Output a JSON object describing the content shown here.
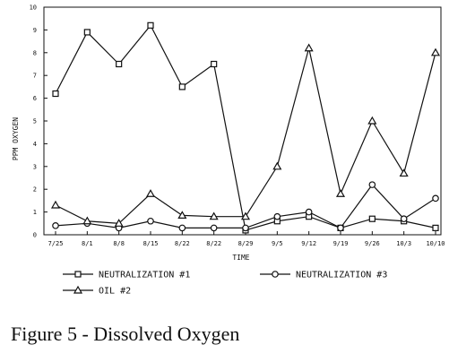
{
  "caption": "Figure 5 - Dissolved Oxygen",
  "chart_data": {
    "type": "line",
    "xlabel": "TIME",
    "ylabel": "PPM OXYGEN",
    "ylim": [
      0,
      10
    ],
    "yticks": [
      0,
      1,
      2,
      3,
      4,
      5,
      6,
      7,
      8,
      9,
      10
    ],
    "categories": [
      "7/25",
      "8/1",
      "8/8",
      "8/15",
      "8/22",
      "8/22",
      "8/29",
      "9/5",
      "9/12",
      "9/19",
      "9/26",
      "10/3",
      "10/10"
    ],
    "grid": false,
    "legend_position": "bottom",
    "series": [
      {
        "name": "NEUTRALIZATION #1",
        "marker": "square",
        "values": [
          6.2,
          8.9,
          7.5,
          9.2,
          6.5,
          7.5,
          0.2,
          0.6,
          0.8,
          0.3,
          0.7,
          0.6,
          0.3
        ]
      },
      {
        "name": "NEUTRALIZATION #3",
        "marker": "circle",
        "values": [
          0.4,
          0.5,
          0.3,
          0.6,
          0.3,
          0.3,
          0.3,
          0.8,
          1.0,
          0.3,
          2.2,
          0.7,
          1.6
        ]
      },
      {
        "name": "OIL #2",
        "marker": "triangle",
        "values": [
          1.3,
          0.6,
          0.5,
          1.8,
          0.85,
          0.8,
          0.8,
          3.0,
          8.2,
          1.8,
          5.0,
          2.7,
          8.0
        ]
      }
    ]
  }
}
